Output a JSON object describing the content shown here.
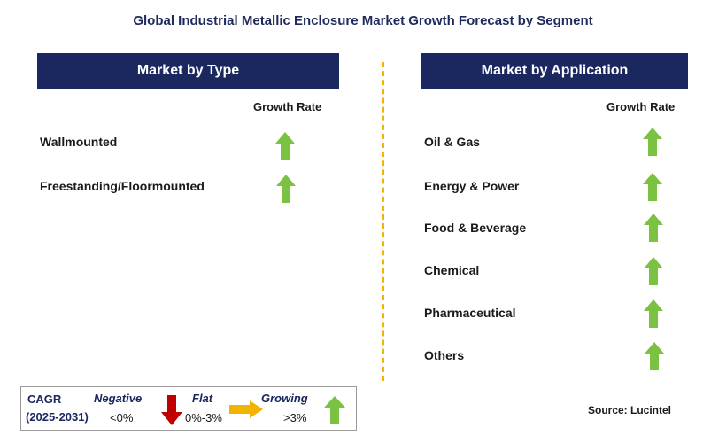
{
  "title": "Global Industrial Metallic Enclosure Market Growth Forecast by Segment",
  "left_panel": {
    "header": "Market by Type",
    "column_label": "Growth Rate",
    "rows": [
      {
        "label": "Wallmounted",
        "trend": "growing"
      },
      {
        "label": "Freestanding/Floormounted",
        "trend": "growing"
      }
    ]
  },
  "right_panel": {
    "header": "Market by Application",
    "column_label": "Growth Rate",
    "rows": [
      {
        "label": "Oil & Gas",
        "trend": "growing"
      },
      {
        "label": "Energy & Power",
        "trend": "growing"
      },
      {
        "label": "Food & Beverage",
        "trend": "growing"
      },
      {
        "label": "Chemical",
        "trend": "growing"
      },
      {
        "label": "Pharmaceutical",
        "trend": "growing"
      },
      {
        "label": "Others",
        "trend": "growing"
      }
    ]
  },
  "legend": {
    "cagr_label": "CAGR",
    "period": "(2025-2031)",
    "negative_label": "Negative",
    "negative_range": "<0%",
    "flat_label": "Flat",
    "flat_range": "0%-3%",
    "growing_label": "Growing",
    "growing_range": ">3%"
  },
  "source": "Source: Lucintel",
  "colors": {
    "header_bg": "#1b2860",
    "growing_arrow": "#7cc242",
    "negative_arrow": "#c00000",
    "flat_arrow": "#f2b400",
    "divider": "#f2b400"
  },
  "icons": {
    "growing": "up-arrow-icon",
    "negative": "down-arrow-icon",
    "flat": "right-arrow-icon"
  }
}
